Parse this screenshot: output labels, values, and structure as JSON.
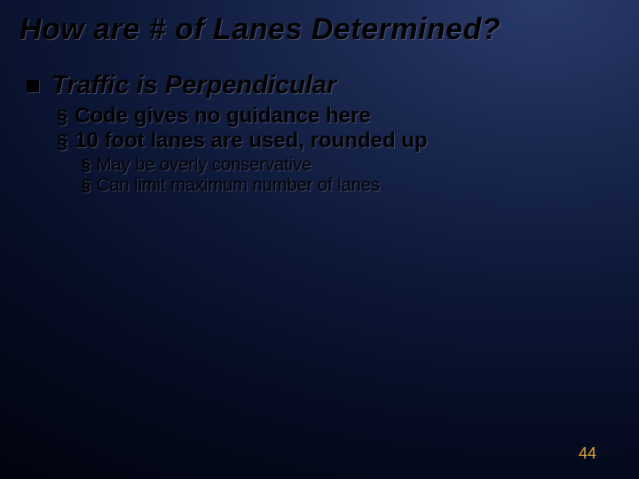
{
  "slide": {
    "title": "How are # of Lanes Determined?",
    "page_number": "44",
    "colors": {
      "title_color": "#000000",
      "text_color": "#000000",
      "page_num_color": "#e0a838",
      "bg_gradient_start": "#2a3a6a",
      "bg_gradient_end": "#020510"
    },
    "bullets": {
      "lvl1": {
        "text": "Traffic is Perpendicular"
      },
      "lvl2": [
        {
          "text": "Code gives no guidance here"
        },
        {
          "text": "10 foot lanes are used, rounded up"
        }
      ],
      "lvl3": [
        {
          "text": "May be overly conservative"
        },
        {
          "text": "Can limit maximum number of lanes"
        }
      ]
    }
  }
}
